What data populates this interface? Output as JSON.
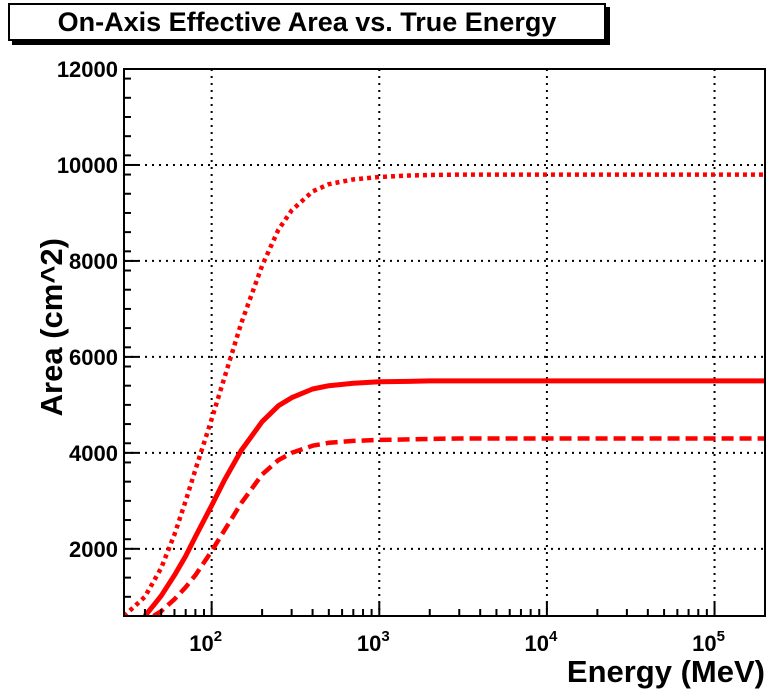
{
  "chart_data": {
    "type": "line",
    "title": "On-Axis Effective Area vs. True Energy",
    "xlabel": "Energy (MeV)",
    "ylabel": "Area (cm^2)",
    "x_scale": "log",
    "xlim": [
      30,
      200000
    ],
    "ylim": [
      600,
      12000
    ],
    "grid": true,
    "y_ticks": [
      {
        "value": 2000,
        "label": "2000"
      },
      {
        "value": 4000,
        "label": "4000"
      },
      {
        "value": 6000,
        "label": "6000"
      },
      {
        "value": 8000,
        "label": "8000"
      },
      {
        "value": 10000,
        "label": "10000"
      },
      {
        "value": 12000,
        "label": "12000"
      }
    ],
    "x_ticks": [
      {
        "value": 100,
        "base": "10",
        "exp": "2"
      },
      {
        "value": 1000,
        "base": "10",
        "exp": "3"
      },
      {
        "value": 10000,
        "base": "10",
        "exp": "4"
      },
      {
        "value": 100000,
        "base": "10",
        "exp": "5"
      }
    ],
    "series": [
      {
        "name": "dotted",
        "style": "dotted",
        "color": "#ff0000",
        "x": [
          30,
          40,
          50,
          60,
          70,
          80,
          100,
          120,
          150,
          200,
          250,
          300,
          400,
          500,
          700,
          1000,
          1500,
          2000,
          3000,
          5000,
          10000,
          30000,
          100000,
          200000
        ],
        "y": [
          600,
          1000,
          1600,
          2300,
          3000,
          3650,
          4700,
          5600,
          6700,
          7900,
          8650,
          9050,
          9450,
          9600,
          9700,
          9750,
          9780,
          9790,
          9800,
          9800,
          9800,
          9800,
          9800,
          9800
        ]
      },
      {
        "name": "solid",
        "style": "solid",
        "color": "#ff0000",
        "x": [
          40,
          45,
          50,
          60,
          70,
          80,
          100,
          120,
          150,
          200,
          250,
          300,
          400,
          500,
          700,
          1000,
          1500,
          2000,
          3000,
          5000,
          10000,
          30000,
          100000,
          200000
        ],
        "y": [
          600,
          820,
          1020,
          1450,
          1850,
          2250,
          2900,
          3450,
          4050,
          4650,
          4980,
          5150,
          5330,
          5400,
          5450,
          5480,
          5490,
          5500,
          5500,
          5500,
          5500,
          5500,
          5500,
          5500
        ]
      },
      {
        "name": "dashed",
        "style": "dashed",
        "color": "#ff0000",
        "x": [
          45,
          50,
          60,
          70,
          80,
          100,
          120,
          150,
          200,
          250,
          300,
          400,
          500,
          700,
          1000,
          1500,
          2000,
          3000,
          5000,
          10000,
          30000,
          100000,
          200000
        ],
        "y": [
          600,
          700,
          950,
          1200,
          1450,
          1950,
          2400,
          2950,
          3550,
          3850,
          4000,
          4150,
          4210,
          4250,
          4270,
          4280,
          4290,
          4300,
          4300,
          4300,
          4300,
          4300,
          4300
        ]
      }
    ]
  }
}
